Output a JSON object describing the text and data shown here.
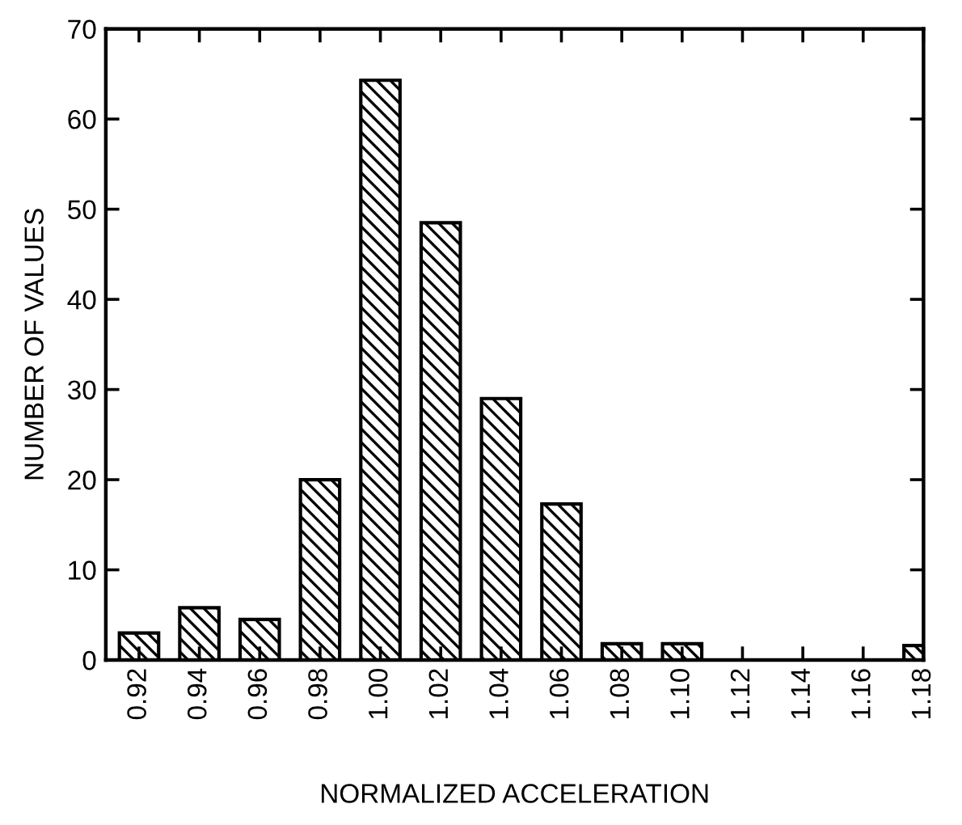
{
  "chart_data": {
    "type": "bar",
    "xlabel": "NORMALIZED ACCELERATION",
    "ylabel": "NUMBER OF VALUES",
    "categories": [
      "0.92",
      "0.94",
      "0.96",
      "0.98",
      "1.00",
      "1.02",
      "1.04",
      "1.06",
      "1.08",
      "1.10",
      "1.12",
      "1.14",
      "1.16",
      "1.18"
    ],
    "values": [
      3,
      5.8,
      4.5,
      20,
      64.3,
      48.5,
      29,
      17.3,
      1.8,
      1.8,
      0,
      0,
      0,
      1.6
    ],
    "color": "#000000",
    "ylim": [
      0,
      70
    ],
    "yticks": [
      0,
      10,
      20,
      30,
      40,
      50,
      60,
      70
    ],
    "grid": false,
    "legend": false
  }
}
